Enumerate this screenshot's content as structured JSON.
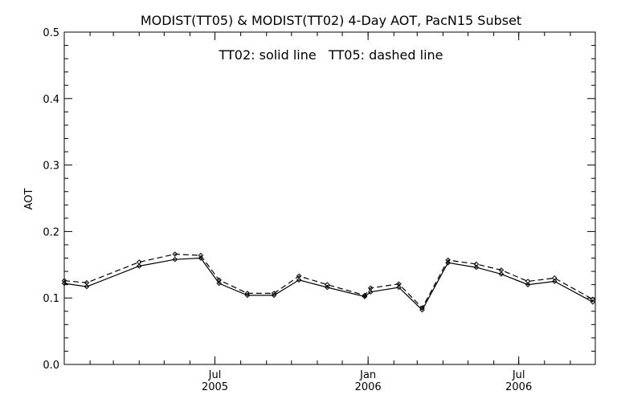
{
  "chart_data": {
    "type": "line",
    "title": "MODIST(TT05) & MODIST(TT02) 4-Day AOT, PacN15 Subset",
    "annotation": "TT02: solid line   TT05: dashed line",
    "ylabel": "AOT",
    "xlabel": "",
    "ylim": [
      0.0,
      0.5
    ],
    "yticks": [
      "0.0",
      "0.1",
      "0.2",
      "0.3",
      "0.4",
      "0.5"
    ],
    "xlim": [
      "2005-01-01",
      "2006-10-01"
    ],
    "xticks": [
      {
        "date": "2005-07-01",
        "month": "Jul",
        "year": "2005"
      },
      {
        "date": "2006-01-01",
        "month": "Jan",
        "year": "2006"
      },
      {
        "date": "2006-07-01",
        "month": "Jul",
        "year": "2006"
      }
    ],
    "grid": false,
    "series": [
      {
        "name": "TT02",
        "style": "solid",
        "x": [
          "2005-01-01",
          "2005-01-28",
          "2005-04-01",
          "2005-05-14",
          "2005-06-14",
          "2005-07-06",
          "2005-08-09",
          "2005-09-10",
          "2005-10-10",
          "2005-11-13",
          "2005-12-28",
          "2006-01-04",
          "2006-02-07",
          "2006-03-07",
          "2006-04-07",
          "2006-05-11",
          "2006-06-10",
          "2006-07-12",
          "2006-08-13",
          "2006-09-28"
        ],
        "values": [
          0.122,
          0.117,
          0.148,
          0.158,
          0.16,
          0.122,
          0.104,
          0.104,
          0.127,
          0.116,
          0.102,
          0.109,
          0.116,
          0.082,
          0.153,
          0.146,
          0.136,
          0.12,
          0.125,
          0.094
        ]
      },
      {
        "name": "TT05",
        "style": "dashed",
        "x": [
          "2005-01-01",
          "2005-01-28",
          "2005-04-01",
          "2005-05-14",
          "2005-06-14",
          "2005-07-06",
          "2005-08-09",
          "2005-09-10",
          "2005-10-10",
          "2005-11-13",
          "2005-12-28",
          "2006-01-04",
          "2006-02-07",
          "2006-03-07",
          "2006-04-07",
          "2006-05-11",
          "2006-06-10",
          "2006-07-12",
          "2006-08-13",
          "2006-09-28"
        ],
        "values": [
          0.126,
          0.123,
          0.154,
          0.166,
          0.164,
          0.127,
          0.107,
          0.107,
          0.133,
          0.12,
          0.104,
          0.115,
          0.121,
          0.085,
          0.157,
          0.151,
          0.142,
          0.125,
          0.13,
          0.098
        ]
      }
    ]
  }
}
